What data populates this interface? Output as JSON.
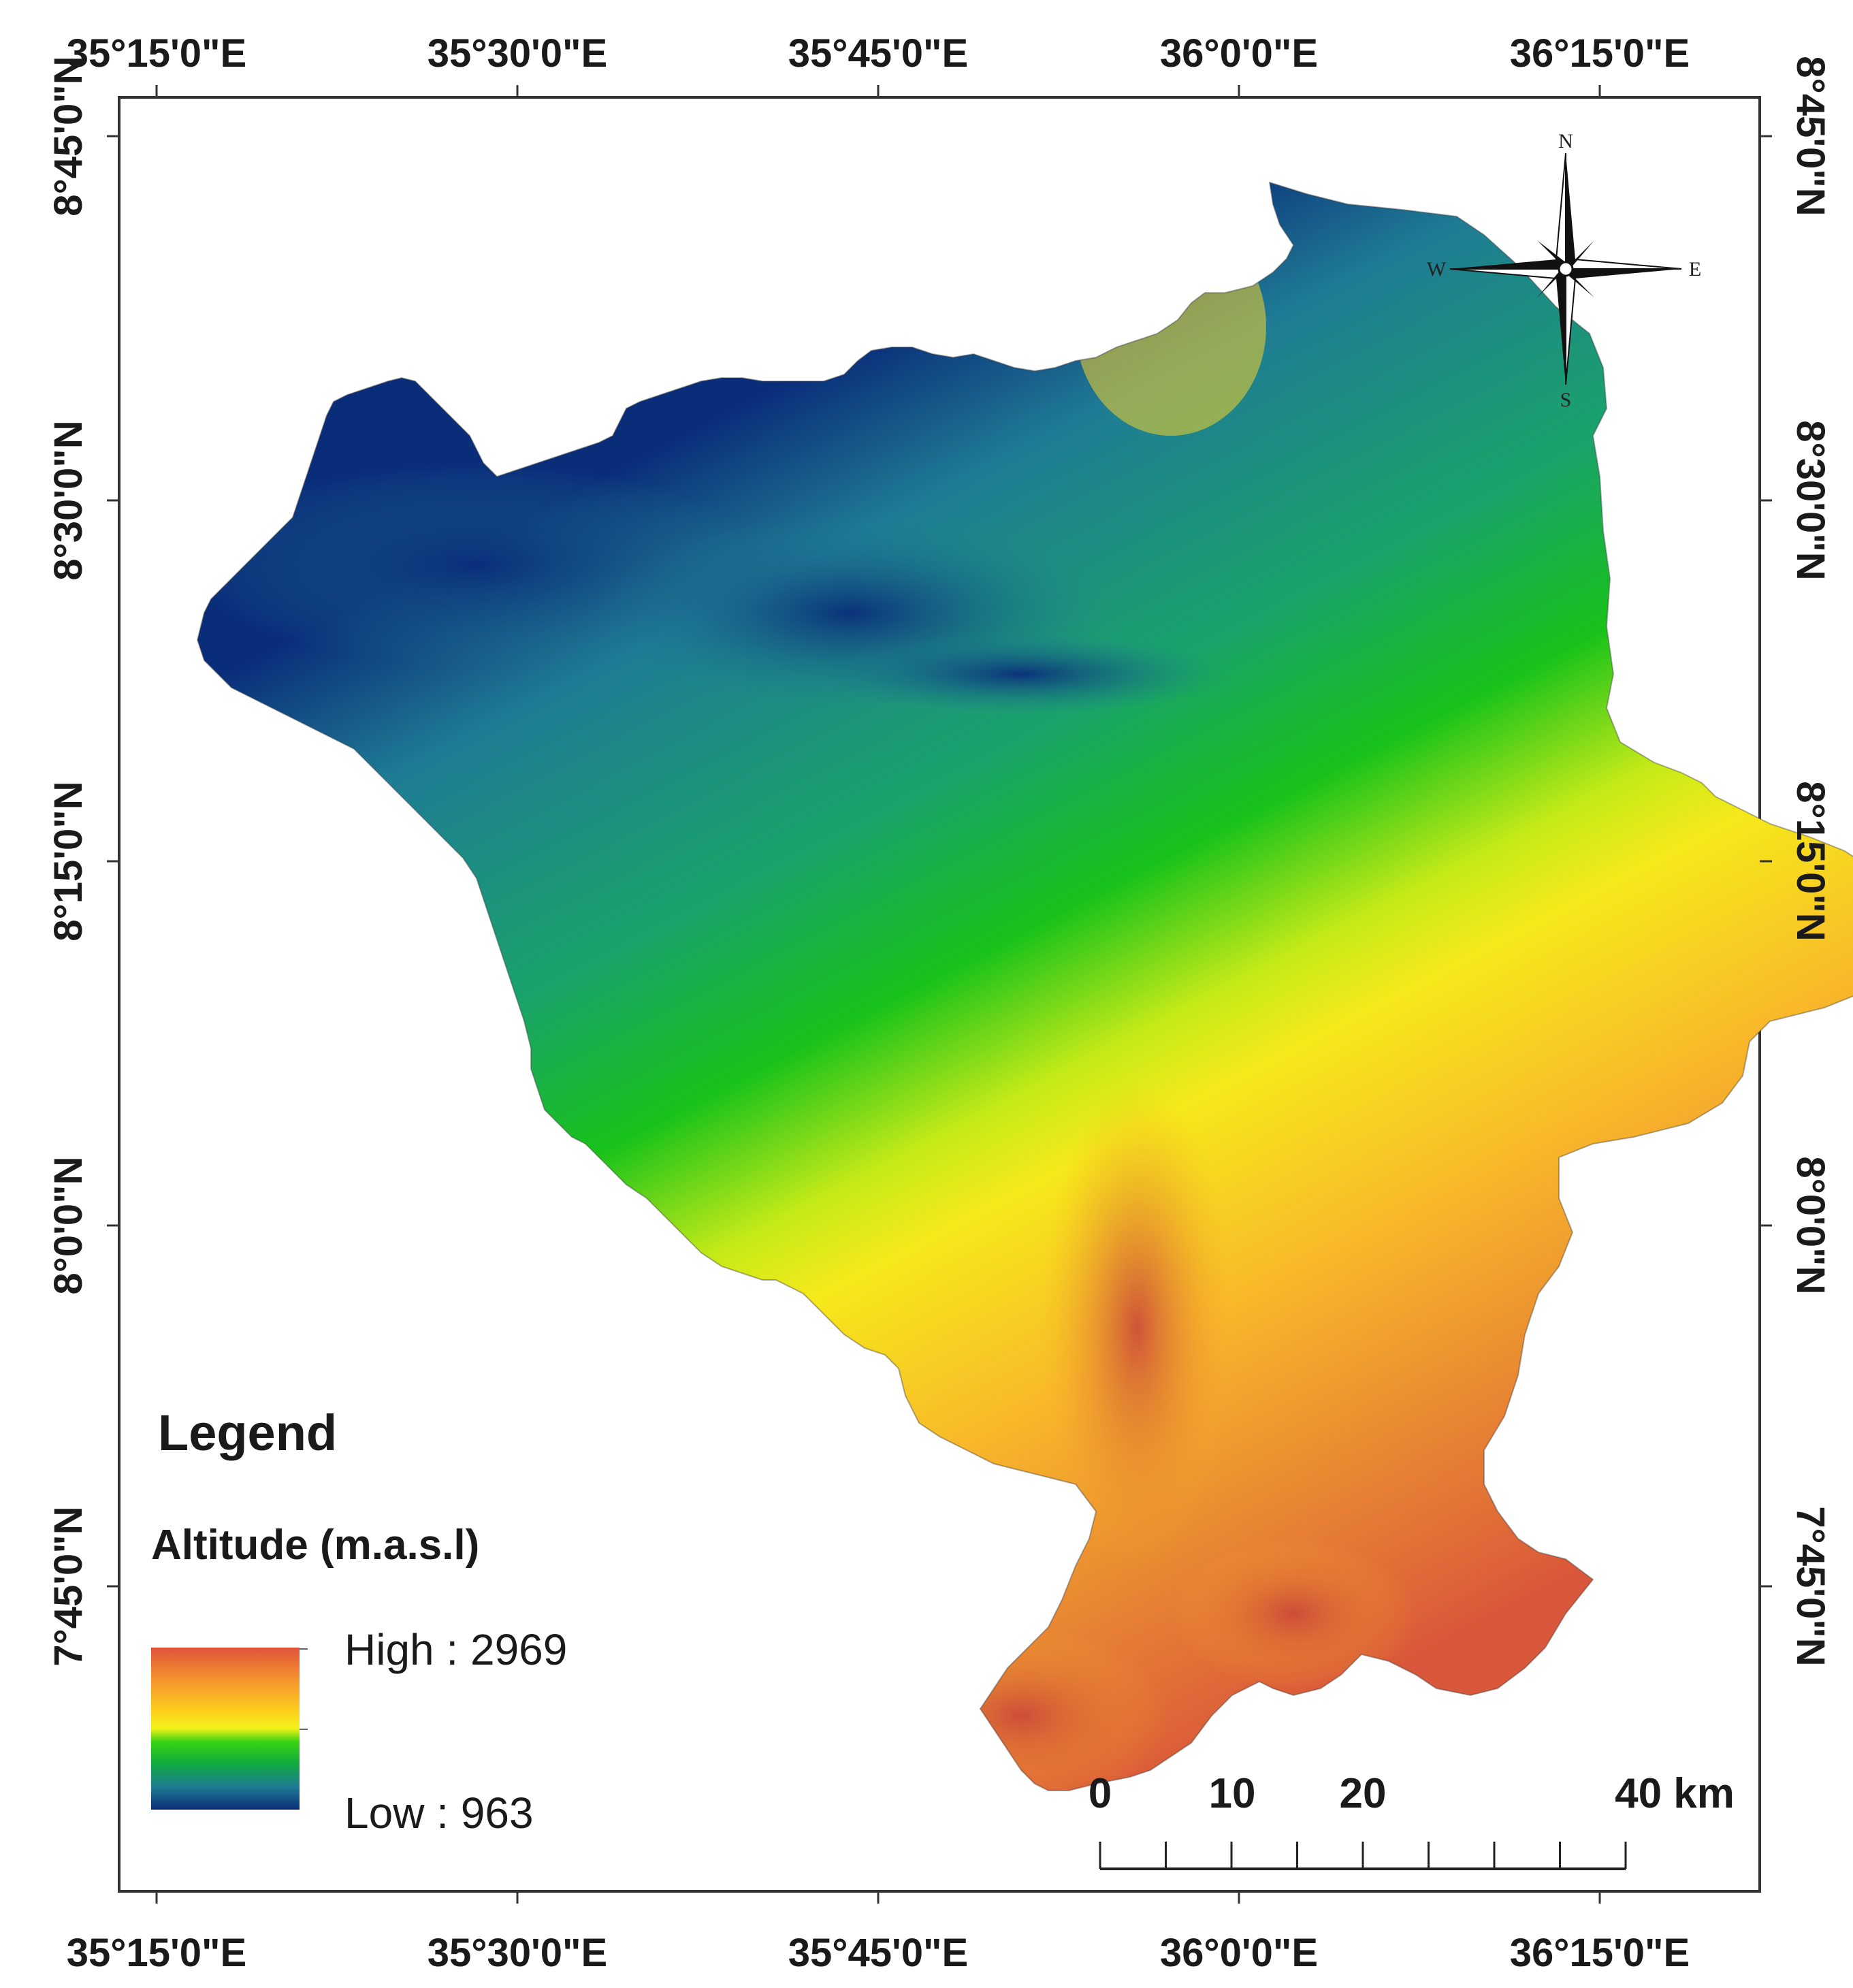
{
  "map": {
    "lon_ticks": [
      "35°15'0\"E",
      "35°30'0\"E",
      "35°45'0\"E",
      "36°0'0\"E",
      "36°15'0\"E"
    ],
    "lat_ticks": [
      "8°45'0\"N",
      "8°30'0\"N",
      "8°15'0\"N",
      "8°0'0\"N",
      "7°45'0\"N"
    ]
  },
  "compass": {
    "north": "N",
    "south": "S",
    "east": "E",
    "west": "W"
  },
  "legend": {
    "title": "Legend",
    "subtitle": "Altitude (m.a.s.l)",
    "high_label": "High : 2969",
    "low_label": "Low : 963",
    "ramp_colors": [
      "#e0533a",
      "#f79a2c",
      "#fcd21c",
      "#f2f21a",
      "#39d311",
      "#0fa940",
      "#1f7c94",
      "#0a2d7a"
    ]
  },
  "scale_bar": {
    "labels": [
      "0",
      "10",
      "20",
      "40 km"
    ]
  },
  "colors": {
    "low": "#0a2d7a",
    "teal": "#1f7c94",
    "green": "#18c21a",
    "yellow": "#f2ee1a",
    "orange": "#f7a72a",
    "high": "#d9573a"
  }
}
